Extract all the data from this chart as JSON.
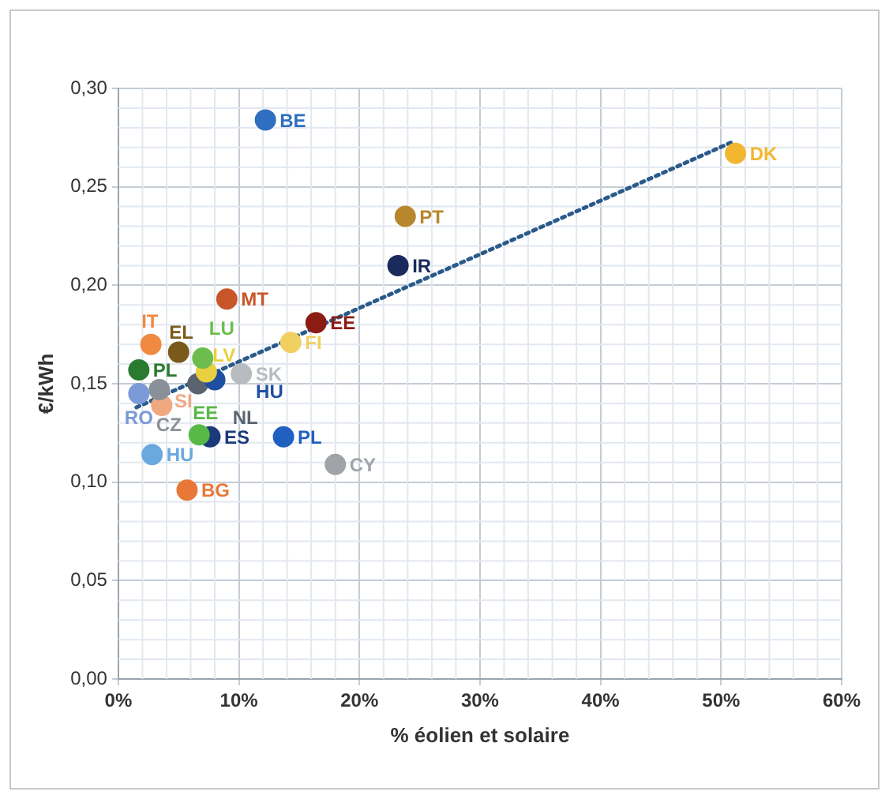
{
  "chart_data": {
    "type": "scatter",
    "xlabel": "% éolien et solaire",
    "ylabel": "€/kWh",
    "xlim": [
      0,
      60
    ],
    "xticks": [
      {
        "value": 0,
        "label": "0%"
      },
      {
        "value": 10,
        "label": "10%"
      },
      {
        "value": 20,
        "label": "20%"
      },
      {
        "value": 30,
        "label": "30%"
      },
      {
        "value": 40,
        "label": "40%"
      },
      {
        "value": 50,
        "label": "50%"
      },
      {
        "value": 60,
        "label": "60%"
      }
    ],
    "ylim": [
      0,
      0.3
    ],
    "yticks": [
      {
        "value": 0,
        "label": "0,00"
      },
      {
        "value": 0.05,
        "label": "0,05"
      },
      {
        "value": 0.1,
        "label": "0,10"
      },
      {
        "value": 0.15,
        "label": "0,15"
      },
      {
        "value": 0.2,
        "label": "0,20"
      },
      {
        "value": 0.25,
        "label": "0,25"
      },
      {
        "value": 0.3,
        "label": "0,30"
      }
    ],
    "grid": true,
    "legend": false,
    "marker": "circle",
    "series": [
      {
        "name": "BE",
        "color": "#2f6fc0",
        "x": [
          12.2
        ],
        "values": [
          0.284
        ]
      },
      {
        "name": "DK",
        "color": "#f2b630",
        "x": [
          51.2
        ],
        "values": [
          0.267
        ]
      },
      {
        "name": "PT",
        "color": "#b8862c",
        "x": [
          23.8
        ],
        "values": [
          0.235
        ]
      },
      {
        "name": "IR",
        "color": "#1a2a5a",
        "x": [
          23.2
        ],
        "values": [
          0.21
        ]
      },
      {
        "name": "MT",
        "color": "#c8562a",
        "x": [
          9.0
        ],
        "values": [
          0.193
        ]
      },
      {
        "name": "EE",
        "color": "#8b1c14",
        "x": [
          16.4
        ],
        "values": [
          0.181
        ]
      },
      {
        "name": "FI",
        "color": "#f0d060",
        "x": [
          14.3
        ],
        "values": [
          0.171
        ]
      },
      {
        "name": "IT",
        "color": "#ef8a40",
        "x": [
          2.7
        ],
        "values": [
          0.17
        ]
      },
      {
        "name": "EL",
        "color": "#7a5a1a",
        "x": [
          5.0
        ],
        "values": [
          0.166
        ]
      },
      {
        "name": "LU",
        "color": "#6cbd4e",
        "x": [
          7.0
        ],
        "values": [
          0.163
        ]
      },
      {
        "name": "LV",
        "color": "#e8d040",
        "x": [
          7.3
        ],
        "values": [
          0.156
        ]
      },
      {
        "name": "PL",
        "color": "#2a7a30",
        "x": [
          1.7
        ],
        "values": [
          0.157
        ]
      },
      {
        "name": "SK",
        "color": "#b8bcc0",
        "x": [
          10.2
        ],
        "values": [
          0.155
        ]
      },
      {
        "name": "HU",
        "color": "#1f4fa0",
        "x": [
          8.0
        ],
        "values": [
          0.152
        ]
      },
      {
        "name": "NL",
        "color": "#5a6470",
        "x": [
          6.6
        ],
        "values": [
          0.15
        ]
      },
      {
        "name": "RO",
        "color": "#7a9ad8",
        "x": [
          1.7
        ],
        "values": [
          0.145
        ]
      },
      {
        "name": "CZ",
        "color": "#8a9098",
        "x": [
          3.4
        ],
        "values": [
          0.147
        ]
      },
      {
        "name": "SI",
        "color": "#f0a880",
        "x": [
          3.6
        ],
        "values": [
          0.139
        ]
      },
      {
        "name": "EE",
        "color": "#58b848",
        "x": [
          6.7
        ],
        "values": [
          0.124
        ]
      },
      {
        "name": "ES",
        "color": "#1a3a7a",
        "x": [
          7.6
        ],
        "values": [
          0.123
        ]
      },
      {
        "name": "PL",
        "color": "#2060c0",
        "x": [
          13.7
        ],
        "values": [
          0.123
        ]
      },
      {
        "name": "HU",
        "color": "#6aa8e0",
        "x": [
          2.8
        ],
        "values": [
          0.114
        ]
      },
      {
        "name": "CY",
        "color": "#a0a4a8",
        "x": [
          18.0
        ],
        "values": [
          0.109
        ]
      },
      {
        "name": "BG",
        "color": "#e87838",
        "x": [
          5.7
        ],
        "values": [
          0.096
        ]
      },
      {
        "type": "line",
        "color": "#2a5a8a",
        "x": [
          1.5,
          51
        ],
        "values": [
          0.138,
          0.273
        ],
        "line_style": "dotted",
        "marker": "none"
      }
    ]
  }
}
